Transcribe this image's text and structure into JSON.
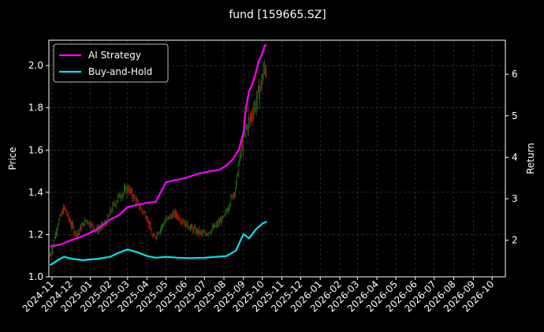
{
  "chart_data": {
    "type": "line",
    "title": "fund [159665.SZ]",
    "ylabel": "Price",
    "y2label": "Return",
    "ylim": [
      1.0,
      2.12
    ],
    "y2lim": [
      1.12,
      6.82
    ],
    "yticks": [
      1.0,
      1.2,
      1.4,
      1.6,
      1.8,
      2.0
    ],
    "y2ticks": [
      2,
      3,
      4,
      5,
      6
    ],
    "xlim": [
      "2024-10-27",
      "2026-10-22"
    ],
    "xticks": [
      "2024-11",
      "2024-12",
      "2025-01",
      "2025-02",
      "2025-03",
      "2025-04",
      "2025-05",
      "2025-06",
      "2025-07",
      "2025-08",
      "2025-09",
      "2025-10",
      "2025-11",
      "2025-12",
      "2026-01",
      "2026-02",
      "2026-03",
      "2026-04",
      "2026-05",
      "2026-06",
      "2026-07",
      "2026-08",
      "2026-09",
      "2026-10"
    ],
    "grid": true,
    "legend_position": "top-left",
    "colors": {
      "background": "#000000",
      "ai_strategy": "#ff00ff",
      "buy_and_hold": "#00e5ee",
      "candle_up": "#1f7a1f",
      "candle_down": "#cc1a00",
      "grid": "#444444"
    },
    "series": [
      {
        "name": "AI Strategy",
        "axis": "right",
        "x": [
          "2024-10-29",
          "2024-11-15",
          "2024-12-01",
          "2024-12-20",
          "2025-01-10",
          "2025-02-01",
          "2025-02-15",
          "2025-03-01",
          "2025-03-15",
          "2025-03-31",
          "2025-04-15",
          "2025-05-01",
          "2025-05-15",
          "2025-06-01",
          "2025-06-20",
          "2025-07-05",
          "2025-07-25",
          "2025-08-05",
          "2025-08-15",
          "2025-08-25",
          "2025-09-01",
          "2025-09-05",
          "2025-09-10",
          "2025-09-15",
          "2025-09-20",
          "2025-09-25",
          "2025-10-01",
          "2025-10-05",
          "2025-10-08"
        ],
        "values": [
          1.85,
          1.9,
          2.0,
          2.1,
          2.25,
          2.5,
          2.6,
          2.8,
          2.85,
          2.9,
          2.93,
          3.4,
          3.45,
          3.5,
          3.6,
          3.65,
          3.7,
          3.8,
          3.95,
          4.2,
          4.6,
          5.2,
          5.6,
          5.75,
          6.0,
          6.3,
          6.5,
          6.7,
          6.7
        ]
      },
      {
        "name": "Buy-and-Hold",
        "axis": "right",
        "x": [
          "2024-10-29",
          "2024-11-10",
          "2024-11-20",
          "2024-12-05",
          "2024-12-20",
          "2025-01-10",
          "2025-02-01",
          "2025-02-15",
          "2025-03-01",
          "2025-03-15",
          "2025-04-01",
          "2025-04-15",
          "2025-05-01",
          "2025-05-20",
          "2025-06-10",
          "2025-07-01",
          "2025-07-20",
          "2025-08-05",
          "2025-08-20",
          "2025-09-01",
          "2025-09-10",
          "2025-09-20",
          "2025-10-01",
          "2025-10-08"
        ],
        "values": [
          1.4,
          1.52,
          1.6,
          1.55,
          1.52,
          1.55,
          1.6,
          1.7,
          1.78,
          1.72,
          1.62,
          1.58,
          1.6,
          1.58,
          1.57,
          1.58,
          1.6,
          1.62,
          1.75,
          2.15,
          2.05,
          2.25,
          2.4,
          2.45
        ]
      },
      {
        "name": "Price",
        "axis": "left",
        "type": "candlestick",
        "x": [
          "2024-10-29",
          "2024-11-10",
          "2024-11-20",
          "2024-12-01",
          "2024-12-10",
          "2024-12-25",
          "2025-01-10",
          "2025-01-25",
          "2025-02-05",
          "2025-02-15",
          "2025-03-01",
          "2025-03-10",
          "2025-03-20",
          "2025-04-01",
          "2025-04-10",
          "2025-04-20",
          "2025-05-01",
          "2025-05-15",
          "2025-06-01",
          "2025-06-15",
          "2025-07-01",
          "2025-07-15",
          "2025-08-01",
          "2025-08-10",
          "2025-08-20",
          "2025-08-28",
          "2025-09-05",
          "2025-09-12",
          "2025-09-20",
          "2025-09-28",
          "2025-10-05",
          "2025-10-08"
        ],
        "values": [
          1.1,
          1.25,
          1.33,
          1.25,
          1.2,
          1.27,
          1.22,
          1.25,
          1.33,
          1.38,
          1.42,
          1.38,
          1.33,
          1.28,
          1.18,
          1.22,
          1.27,
          1.3,
          1.25,
          1.22,
          1.2,
          1.23,
          1.28,
          1.35,
          1.43,
          1.6,
          1.7,
          1.75,
          1.82,
          1.9,
          2.0,
          1.95
        ]
      }
    ]
  }
}
